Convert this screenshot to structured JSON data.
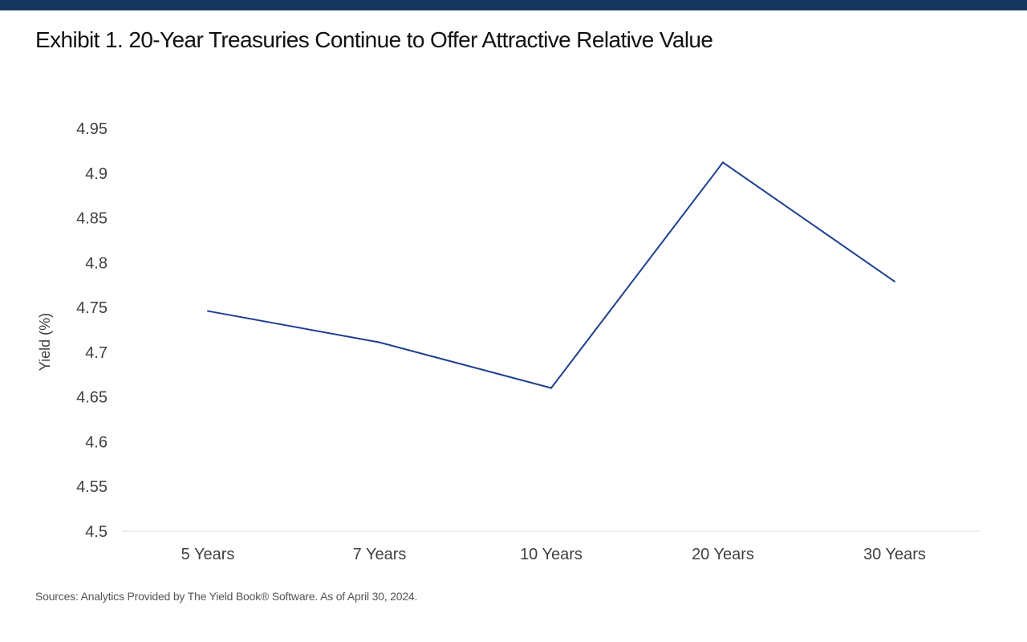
{
  "header": {
    "bar_color": "#17365d"
  },
  "chart_data": {
    "type": "line",
    "title": "Exhibit 1. 20-Year Treasuries Continue to Offer Attractive Relative Value",
    "xlabel": "",
    "ylabel": "Yield (%)",
    "categories": [
      "5 Years",
      "7 Years",
      "10 Years",
      "20 Years",
      "30 Years"
    ],
    "series": [
      {
        "values": [
          4.746,
          4.711,
          4.66,
          4.912,
          4.779
        ],
        "color": "#1f3f8f"
      }
    ],
    "ylim": [
      4.5,
      4.95
    ],
    "yticks": [
      "4.5",
      "4.55",
      "4.6",
      "4.65",
      "4.7",
      "4.75",
      "4.8",
      "4.85",
      "4.9",
      "4.95"
    ],
    "grid": false,
    "legend": "none"
  },
  "footer": {
    "source": "Sources: Analytics Provided by The Yield Book® Software. As of April 30, 2024."
  }
}
